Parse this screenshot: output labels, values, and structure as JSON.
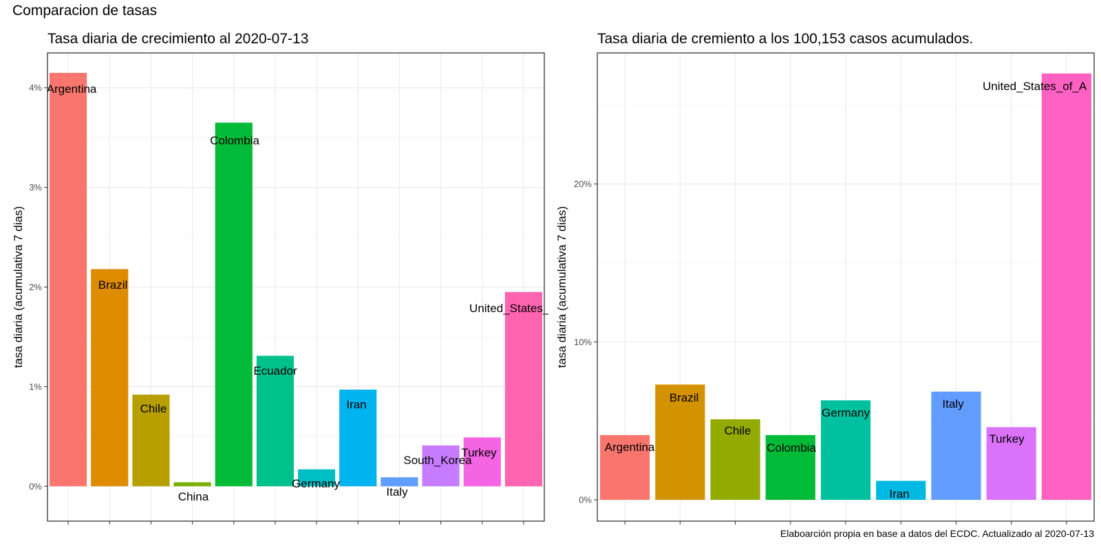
{
  "page": {
    "title": "Comparacion de tasas",
    "caption": "Elaboarción propia en base a datos del ECDC.  Actualizado al  2020-07-13"
  },
  "chart_data": [
    {
      "type": "bar",
      "title": "Tasa diaria de crecimiento al 2020-07-13",
      "xlabel": "",
      "ylabel": "tasa diaria (acumulativa 7 dias)",
      "ylim": [
        -0.35,
        4.35
      ],
      "yticks": [
        0,
        1,
        2,
        3,
        4
      ],
      "ytick_labels": [
        "0%",
        "1%",
        "2%",
        "3%",
        "4%"
      ],
      "grid": true,
      "legend": "none",
      "categories": [
        "Argentina",
        "Brazil",
        "Chile",
        "China",
        "Colombia",
        "Ecuador",
        "Germany",
        "Iran",
        "Italy",
        "South_Korea",
        "Turkey",
        "United_States_of_America"
      ],
      "values": [
        4.15,
        2.18,
        0.92,
        0.04,
        3.65,
        1.31,
        0.17,
        0.97,
        0.09,
        0.41,
        0.49,
        1.95
      ],
      "display_labels": [
        "Argentina",
        "Brazil",
        "Chile",
        "China",
        "Colombia",
        "Ecuador",
        "Germany",
        "Iran",
        "Italy",
        "South_Korea",
        "Turkey",
        "United_States_of_"
      ],
      "colors": [
        "#F8766D",
        "#DE8C00",
        "#B79F00",
        "#7CAE00",
        "#00BA38",
        "#00C08B",
        "#00BFC4",
        "#00B4F0",
        "#619CFF",
        "#C77CFF",
        "#F564E3",
        "#FF64B0"
      ]
    },
    {
      "type": "bar",
      "title": "Tasa diaria de cremiento a los 100,153 casos acumulados.",
      "xlabel": "",
      "ylabel": "tasa diaria (acumulativa 7 dias)",
      "ylim": [
        -1.35,
        28.3
      ],
      "yticks": [
        0,
        10,
        20
      ],
      "ytick_labels": [
        "0%",
        "10%",
        "20%"
      ],
      "grid": true,
      "legend": "none",
      "categories": [
        "Argentina",
        "Brazil",
        "Chile",
        "Colombia",
        "Germany",
        "Iran",
        "Italy",
        "Turkey",
        "United_States_of_America"
      ],
      "values": [
        4.1,
        7.3,
        5.1,
        4.1,
        6.3,
        1.2,
        6.85,
        4.6,
        27.0
      ],
      "display_labels": [
        "Argentina",
        "Brazil",
        "Chile",
        "Colombia",
        "Germany",
        "Iran",
        "Italy",
        "Turkey",
        "United_States_of_A"
      ],
      "colors": [
        "#F8766D",
        "#D39200",
        "#93AA00",
        "#00BA38",
        "#00C19F",
        "#00B9E3",
        "#619CFF",
        "#DB72FB",
        "#FF61C3"
      ]
    }
  ]
}
